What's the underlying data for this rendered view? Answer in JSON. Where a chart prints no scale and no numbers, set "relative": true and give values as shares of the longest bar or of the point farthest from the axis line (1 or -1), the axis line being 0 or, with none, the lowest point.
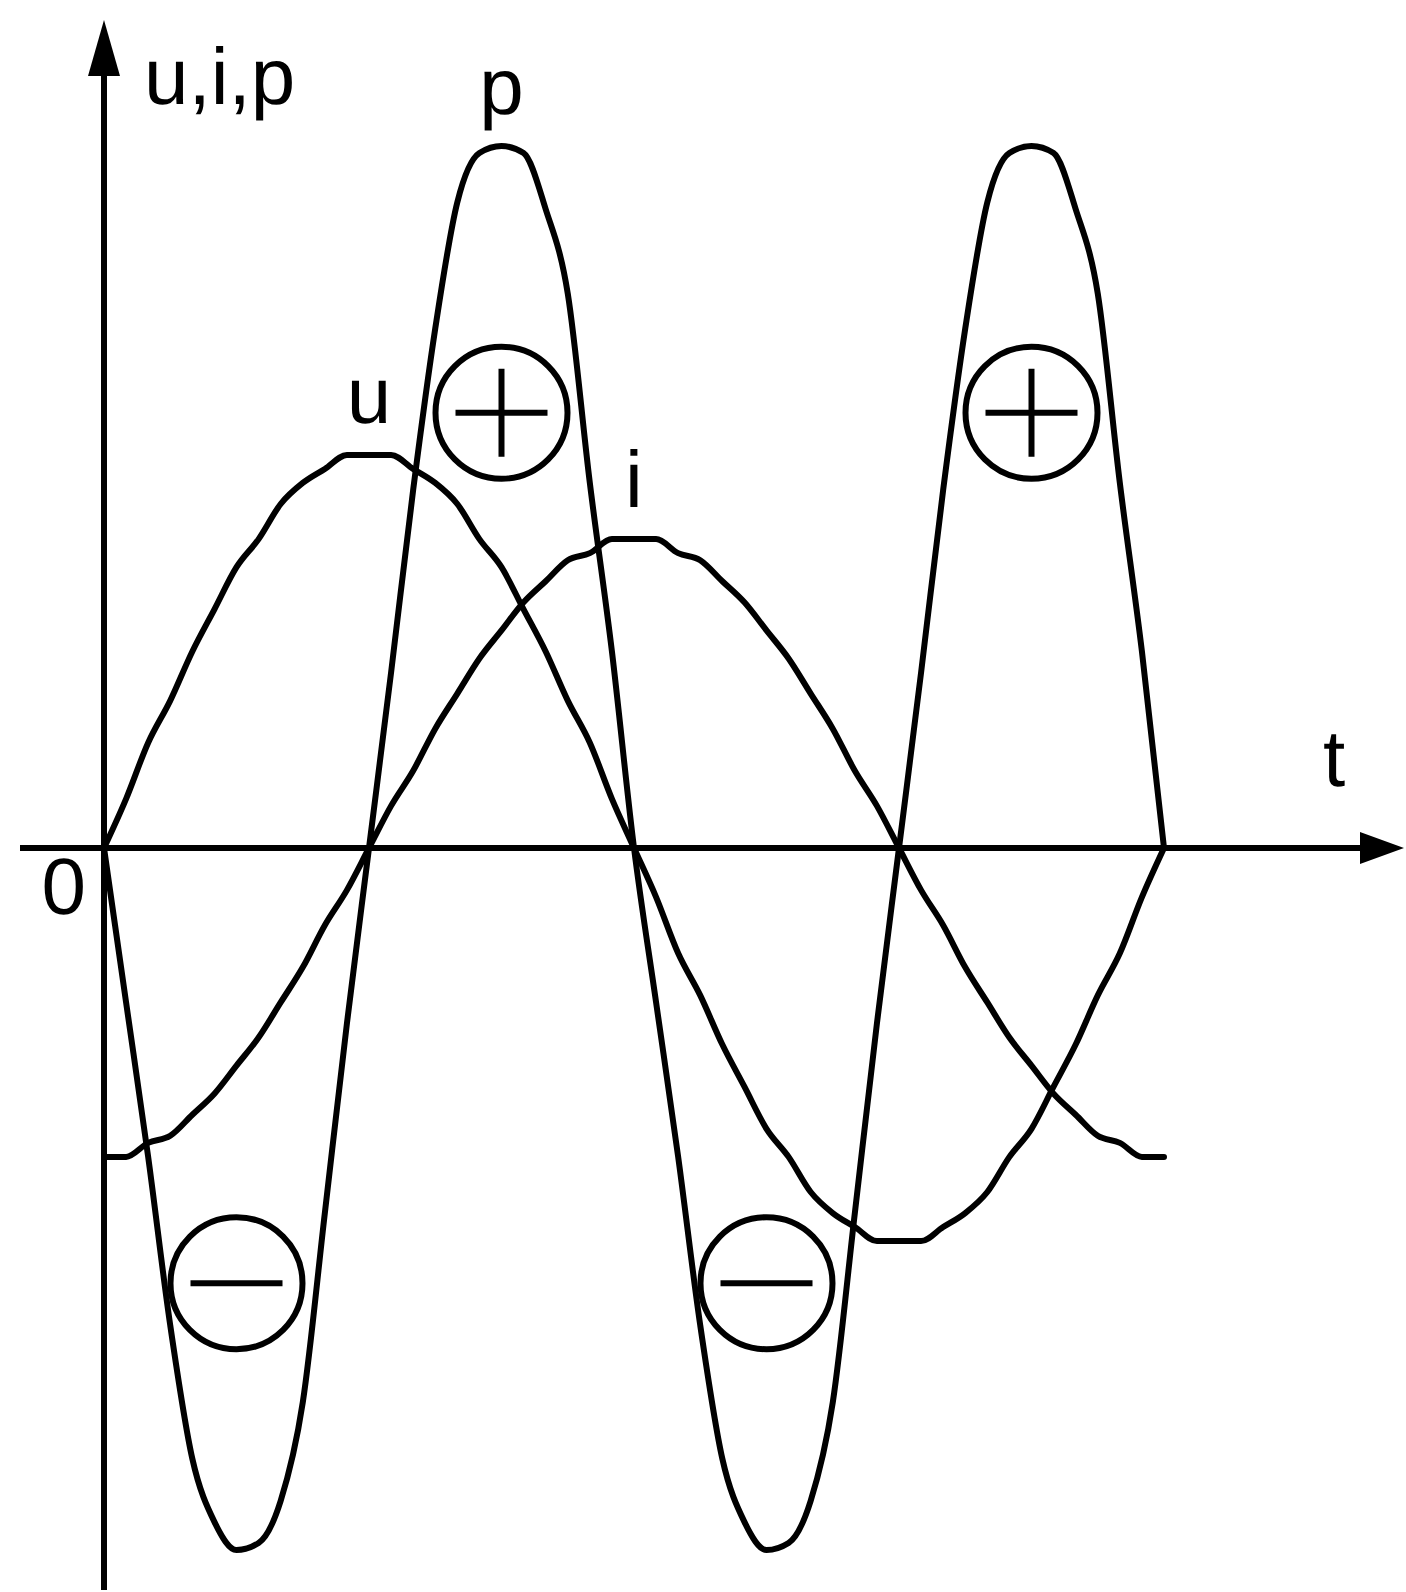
{
  "chart_data": {
    "type": "line",
    "xlabel": "t",
    "ylabel": "u,i,p",
    "relative": true,
    "categories": [
      null,
      null,
      null,
      null,
      null,
      null,
      null,
      null,
      null,
      null,
      null,
      null,
      null,
      null,
      null,
      null,
      null,
      null,
      null,
      null,
      null,
      null,
      null,
      null,
      null,
      null,
      null,
      null,
      null,
      null,
      null,
      null,
      null,
      null,
      null,
      null,
      null,
      null,
      null,
      null,
      null,
      null,
      null,
      null,
      null,
      null,
      null,
      null,
      null
    ],
    "series": [
      {
        "name": "u",
        "color": "#000000",
        "values": [
          0,
          0.07,
          0.15,
          0.21,
          0.28,
          0.34,
          0.4,
          0.44,
          0.49,
          0.52,
          0.54,
          0.56,
          0.56,
          0.56,
          0.54,
          0.52,
          0.49,
          0.44,
          0.4,
          0.34,
          0.28,
          0.21,
          0.15,
          0.07,
          0,
          -0.07,
          -0.15,
          -0.21,
          -0.28,
          -0.34,
          -0.4,
          -0.44,
          -0.49,
          -0.52,
          -0.54,
          -0.56,
          -0.56,
          -0.56,
          -0.54,
          -0.52,
          -0.49,
          -0.44,
          -0.4,
          -0.34,
          -0.28,
          -0.21,
          -0.15,
          -0.07,
          0
        ]
      },
      {
        "name": "i",
        "color": "#000000",
        "values": [
          -0.44,
          -0.44,
          -0.42,
          -0.41,
          -0.38,
          -0.35,
          -0.31,
          -0.27,
          -0.22,
          -0.17,
          -0.11,
          -0.06,
          0,
          0.06,
          0.11,
          0.17,
          0.22,
          0.27,
          0.31,
          0.35,
          0.38,
          0.41,
          0.42,
          0.44,
          0.44,
          0.44,
          0.42,
          0.41,
          0.38,
          0.35,
          0.31,
          0.27,
          0.22,
          0.17,
          0.11,
          0.06,
          0,
          -0.06,
          -0.11,
          -0.17,
          -0.22,
          -0.27,
          -0.31,
          -0.35,
          -0.38,
          -0.41,
          -0.42,
          -0.44,
          -0.44
        ]
      },
      {
        "name": "p",
        "color": "#000000",
        "values": [
          0,
          -0.22,
          -0.44,
          -0.68,
          -0.87,
          -0.96,
          -1,
          -0.99,
          -0.93,
          -0.79,
          -0.52,
          -0.25,
          0,
          0.25,
          0.51,
          0.74,
          0.92,
          0.99,
          1,
          0.99,
          0.91,
          0.79,
          0.52,
          0.28,
          0,
          -0.22,
          -0.44,
          -0.68,
          -0.87,
          -0.96,
          -1,
          -0.99,
          -0.93,
          -0.79,
          -0.52,
          -0.25,
          0,
          0.25,
          0.51,
          0.74,
          0.92,
          0.99,
          1,
          0.99,
          0.91,
          0.79,
          0.52,
          0.28,
          0
        ]
      }
    ],
    "annotations": [
      "0"
    ]
  }
}
